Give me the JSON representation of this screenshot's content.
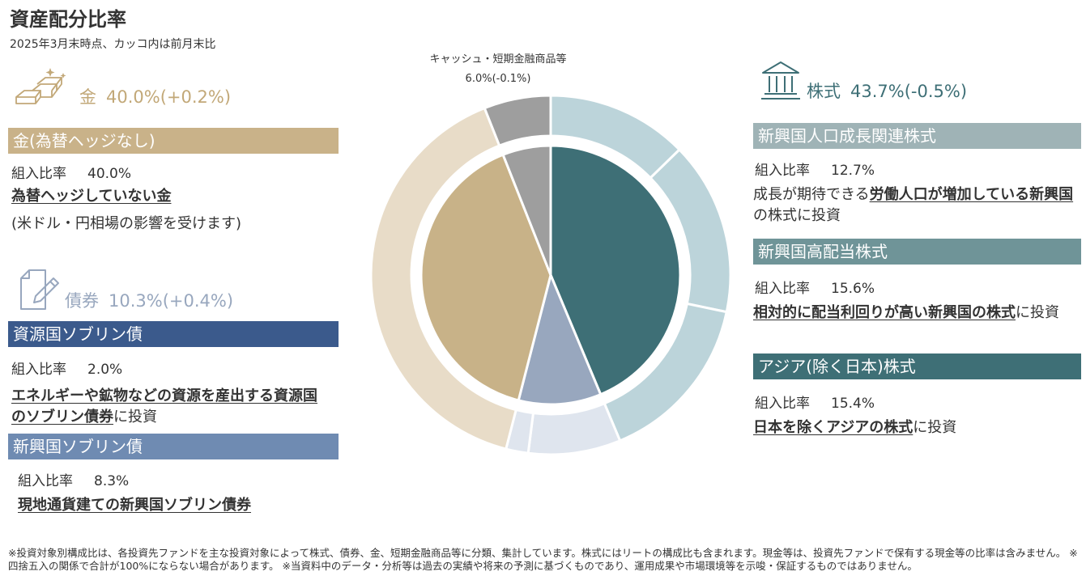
{
  "title": "資産配分比率",
  "subtitle": "2025年3月末時点、カッコ内は前月末比",
  "gold": {
    "label": "金",
    "value": "40.0%(+0.2%)",
    "sub": {
      "name": "金(為替ヘッジなし)",
      "ratio_label": "組入比率",
      "ratio_value": "40.0%",
      "desc_bold": "為替ヘッジしていない金",
      "desc_rest": "(米ドル・円相場の影響を受けます)"
    }
  },
  "bonds": {
    "label": "債券",
    "value": "10.3%(+0.4%)",
    "subs": [
      {
        "name": "資源国ソブリン債",
        "ratio_label": "組入比率",
        "ratio_value": "2.0%",
        "desc_bold": "エネルギーや鉱物などの資源を産出する資源国のソブリン債券",
        "desc_rest": "に投資"
      },
      {
        "name": "新興国ソブリン債",
        "ratio_label": "組入比率",
        "ratio_value": "8.3%",
        "desc_bold": "現地通貨建ての新興国ソブリン債券",
        "desc_rest": ""
      }
    ]
  },
  "equity": {
    "label": "株式",
    "value": "43.7%(-0.5%)",
    "subs": [
      {
        "name": "新興国人口成長関連株式",
        "ratio_label": "組入比率",
        "ratio_value": "12.7%",
        "desc_pre": "成長が期待できる",
        "desc_bold": "労働人口が増加している新興国",
        "desc_rest": "の株式に投資"
      },
      {
        "name": "新興国高配当株式",
        "ratio_label": "組入比率",
        "ratio_value": "15.6%",
        "desc_pre": "",
        "desc_bold": "相対的に配当利回りが高い新興国の株式",
        "desc_rest": "に投資"
      },
      {
        "name": "アジア(除く日本)株式",
        "ratio_label": "組入比率",
        "ratio_value": "15.4%",
        "desc_pre": "",
        "desc_bold": "日本を除くアジアの株式",
        "desc_rest": "に投資"
      }
    ]
  },
  "cash": {
    "label": "キャッシュ・短期金融商品等",
    "value": "6.0%(-0.1%)"
  },
  "footnote": "※投資対象別構成比は、各投資先ファンドを主な投資対象によって株式、債券、金、短期金融商品等に分類、集計しています。株式にはリートの構成比も含まれます。現金等は、投資先ファンドで保有する現金等の比率は含みません。 ※四捨五入の関係で合計が100%にならない場合があります。 ※当資料中のデータ・分析等は過去の実績や将来の予測に基づくものであり、運用成果や市場環境等を示唆・保証するものではありません。",
  "colors": {
    "gold": "#c2a878",
    "gold_bar": "#c9b289",
    "bond_icon": "#98a7be",
    "bond_bar_dark": "#3b5a8c",
    "bond_bar_light": "#6f8bb2",
    "eq1_bar": "#9fb3b6",
    "eq2_bar": "#6f9498",
    "eq3_bar": "#3e6f76",
    "cash": "#9e9e9e"
  },
  "chart_data": {
    "type": "pie",
    "title": "資産配分比率",
    "inner_ring": {
      "order": "clockwise from top",
      "slices": [
        {
          "name": "株式",
          "value": 43.7,
          "color": "#3e6f76"
        },
        {
          "name": "債券",
          "value": 10.3,
          "color": "#98a7be"
        },
        {
          "name": "金",
          "value": 40.0,
          "color": "#c8b288"
        },
        {
          "name": "キャッシュ・短期金融商品等",
          "value": 6.0,
          "color": "#9e9e9e"
        }
      ]
    },
    "outer_ring": {
      "order": "clockwise from top",
      "slices": [
        {
          "name": "新興国人口成長関連株式",
          "value": 12.7,
          "color": "#bcd4da"
        },
        {
          "name": "新興国高配当株式",
          "value": 15.6,
          "color": "#bcd4da"
        },
        {
          "name": "アジア(除く日本)株式",
          "value": 15.4,
          "color": "#bcd4da"
        },
        {
          "name": "新興国ソブリン債",
          "value": 8.3,
          "color": "#dfe5ee"
        },
        {
          "name": "資源国ソブリン債",
          "value": 2.0,
          "color": "#dfe5ee"
        },
        {
          "name": "金(為替ヘッジなし)",
          "value": 40.0,
          "color": "#e8dcc8"
        },
        {
          "name": "キャッシュ・短期金融商品等",
          "value": 6.0,
          "color": "#9e9e9e"
        }
      ]
    }
  }
}
